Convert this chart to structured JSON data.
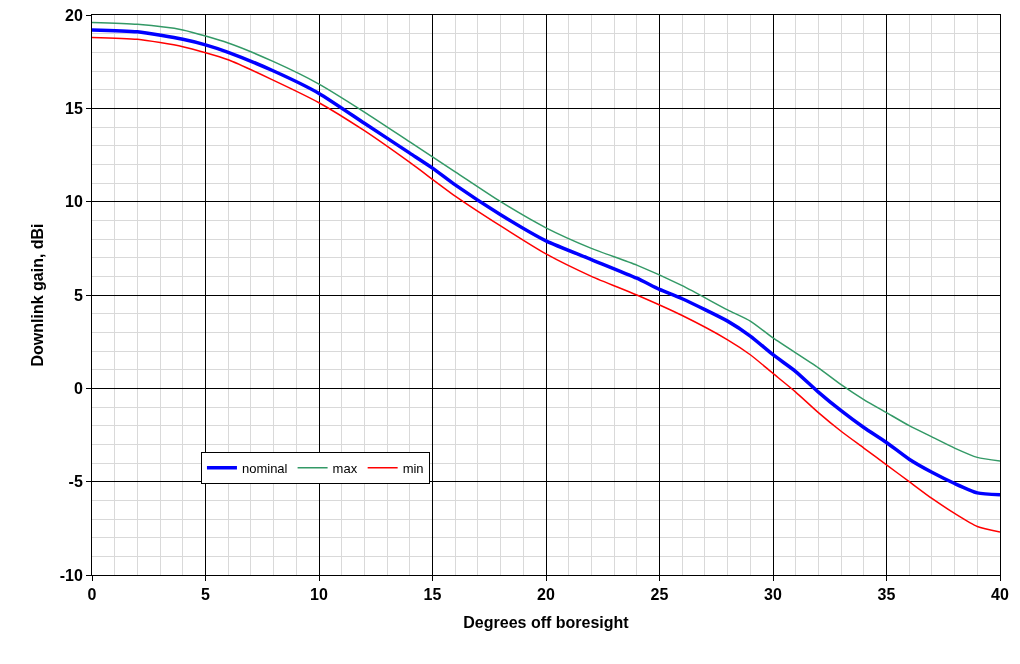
{
  "chart_data": {
    "type": "line",
    "xlabel": "Degrees off boresight",
    "ylabel": "Downlink gain, dBi",
    "xlim": [
      0,
      40
    ],
    "ylim": [
      -10,
      20
    ],
    "xticks": [
      0,
      5,
      10,
      15,
      20,
      25,
      30,
      35,
      40
    ],
    "yticks": [
      -10,
      -5,
      0,
      5,
      10,
      15,
      20
    ],
    "grid": true,
    "legend": "bottom left",
    "marker": "none",
    "line_style": "solid",
    "series": [
      {
        "name": "nominal",
        "color": "#0000ff",
        "x": [
          0,
          2,
          4,
          5,
          6,
          8,
          10,
          12,
          14,
          15,
          16,
          18,
          20,
          22,
          24,
          25,
          26,
          28,
          29,
          30,
          31,
          32,
          33,
          34,
          35,
          36,
          37,
          38,
          39,
          40
        ],
        "values": [
          19.2,
          19.1,
          18.7,
          18.4,
          18.0,
          17.0,
          15.8,
          14.2,
          12.6,
          11.8,
          10.9,
          9.3,
          7.9,
          6.9,
          5.9,
          5.3,
          4.8,
          3.6,
          2.8,
          1.8,
          0.9,
          -0.2,
          -1.2,
          -2.1,
          -2.9,
          -3.8,
          -4.5,
          -5.1,
          -5.6,
          -5.7
        ]
      },
      {
        "name": "max",
        "color": "#339966",
        "x": [
          0,
          2,
          4,
          6,
          8,
          10,
          12,
          14,
          16,
          18,
          20,
          22,
          24,
          26,
          28,
          29,
          30,
          32,
          33,
          34,
          35,
          36,
          37,
          38,
          39,
          40
        ],
        "values": [
          19.6,
          19.5,
          19.2,
          18.5,
          17.5,
          16.3,
          14.8,
          13.2,
          11.6,
          10.0,
          8.6,
          7.5,
          6.6,
          5.5,
          4.2,
          3.6,
          2.7,
          1.1,
          0.2,
          -0.6,
          -1.3,
          -2.0,
          -2.6,
          -3.2,
          -3.7,
          -3.9
        ]
      },
      {
        "name": "min",
        "color": "#ff0000",
        "x": [
          0,
          2,
          4,
          6,
          8,
          10,
          12,
          14,
          16,
          18,
          20,
          22,
          24,
          26,
          28,
          29,
          30,
          31,
          32,
          33,
          34,
          35,
          36,
          37,
          38,
          39,
          40
        ],
        "values": [
          18.8,
          18.7,
          18.3,
          17.6,
          16.5,
          15.3,
          13.8,
          12.1,
          10.3,
          8.7,
          7.2,
          6.0,
          5.0,
          3.9,
          2.6,
          1.8,
          0.8,
          -0.2,
          -1.3,
          -2.3,
          -3.2,
          -4.1,
          -5.0,
          -5.9,
          -6.7,
          -7.4,
          -7.7
        ]
      }
    ]
  }
}
